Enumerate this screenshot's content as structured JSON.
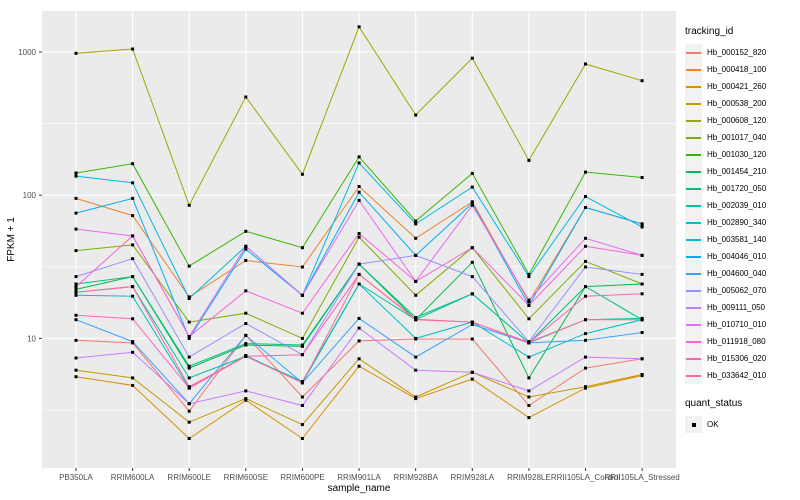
{
  "figure": {
    "background": "#ffffff",
    "panel_background": "#ebebeb",
    "grid_color": "#ffffff",
    "tick_color": "#333333",
    "tick_label_color": "#4d4d4d",
    "axis_title_color": "#000000",
    "point_color": "#000000",
    "legend_key_background": "#f2f2f2"
  },
  "axes": {
    "x_title": "sample_name",
    "y_title": "FPKM + 1"
  },
  "legend": {
    "title": "tracking_id",
    "quant_status_title": "quant_status",
    "ok_label": "OK"
  },
  "chart_data": {
    "type": "line",
    "xlabel": "sample_name",
    "ylabel": "FPKM + 1",
    "y_scale": "log10",
    "grid": true,
    "legend_position": "right",
    "legend_title": "tracking_id",
    "point_shape": "black-square",
    "y_ticks": [
      10,
      100,
      1000
    ],
    "y_tick_labels": [
      "10",
      "100",
      "1000"
    ],
    "y_minor_gridlines": [
      3.162,
      31.62,
      316.2
    ],
    "ylim": [
      1.23,
      1940
    ],
    "categories": [
      "PB350LA",
      "RRIM600LA",
      "RRIM600LE",
      "RRIM600SE",
      "RRIM600PE",
      "RRIM901LA",
      "RRIM928BA",
      "RRIM928LA",
      "RRIM928LE",
      "RRII105LA_Control",
      "RRII105LA_Stressed"
    ],
    "quant_status": {
      "title": "quant_status",
      "items": [
        "OK"
      ]
    },
    "series": [
      {
        "name": "Hb_000152_820",
        "color": "#F8766D",
        "values": [
          9.7,
          9.3,
          3.1,
          10.5,
          3.9,
          9.6,
          9.9,
          9.9,
          3.4,
          6.2,
          7.2
        ]
      },
      {
        "name": "Hb_000418_100",
        "color": "#EA8331",
        "values": [
          95,
          72,
          19.5,
          35,
          31.5,
          115,
          50,
          90,
          18,
          82,
          63
        ]
      },
      {
        "name": "Hb_000421_260",
        "color": "#D89000",
        "values": [
          5.4,
          4.7,
          2.0,
          3.7,
          2.0,
          6.4,
          3.8,
          5.2,
          2.8,
          4.5,
          5.5
        ]
      },
      {
        "name": "Hb_000538_200",
        "color": "#C09B00",
        "values": [
          6.0,
          5.3,
          2.6,
          3.8,
          2.5,
          7.2,
          3.9,
          5.8,
          3.9,
          4.6,
          5.6
        ]
      },
      {
        "name": "Hb_000608_120",
        "color": "#A3A500",
        "values": [
          980,
          1050,
          85,
          485,
          140,
          1500,
          363,
          905,
          175,
          825,
          630
        ]
      },
      {
        "name": "Hb_001017_040",
        "color": "#7CAE00",
        "values": [
          41,
          45,
          13,
          15,
          10,
          51,
          20,
          43,
          13.7,
          34.5,
          24
        ]
      },
      {
        "name": "Hb_001030_120",
        "color": "#39B600",
        "values": [
          143,
          166,
          32,
          56,
          43,
          185,
          66,
          142,
          28,
          145,
          133
        ]
      },
      {
        "name": "Hb_001454_210",
        "color": "#00BB4E",
        "values": [
          22,
          27,
          6.2,
          9,
          8.8,
          33,
          13.5,
          34,
          5.3,
          23,
          24
        ]
      },
      {
        "name": "Hb_001720_050",
        "color": "#00BF7D",
        "values": [
          24,
          27,
          6.4,
          9.2,
          9,
          33,
          14,
          20.5,
          9.3,
          23,
          13.5
        ]
      },
      {
        "name": "Hb_002039_010",
        "color": "#00C1A3",
        "values": [
          21,
          23,
          5.3,
          7.5,
          5,
          24,
          13.5,
          20.5,
          9.3,
          13.5,
          13.8
        ]
      },
      {
        "name": "Hb_002890_340",
        "color": "#00BFC4",
        "values": [
          20,
          19.7,
          4.5,
          7.6,
          4.9,
          24,
          10,
          13,
          7.4,
          10.8,
          13.5
        ]
      },
      {
        "name": "Hb_003581_140",
        "color": "#00BAE0",
        "values": [
          136,
          122,
          19,
          44,
          20,
          168,
          63,
          114,
          27,
          98,
          60
        ]
      },
      {
        "name": "Hb_004046_010",
        "color": "#00B0F6",
        "values": [
          75,
          95,
          10,
          42,
          20,
          105,
          38,
          88,
          17,
          82,
          63
        ]
      },
      {
        "name": "Hb_004600_040",
        "color": "#35A2FF",
        "values": [
          13.5,
          9.5,
          3.5,
          10.5,
          4.9,
          13.8,
          7.4,
          12.5,
          9.3,
          9.7,
          11
        ]
      },
      {
        "name": "Hb_005062_070",
        "color": "#9590FF",
        "values": [
          27,
          36,
          7.4,
          12.7,
          7.7,
          33,
          38,
          27,
          9.5,
          31.5,
          28
        ]
      },
      {
        "name": "Hb_009111_050",
        "color": "#C77CFF",
        "values": [
          7.3,
          8,
          3.5,
          4.3,
          3.4,
          11.8,
          6,
          5.8,
          4.3,
          7.4,
          7.2
        ]
      },
      {
        "name": "Hb_010710_010",
        "color": "#E76BF3",
        "values": [
          58,
          52,
          10.3,
          44,
          20,
          92,
          25,
          85,
          18.5,
          50,
          38
        ]
      },
      {
        "name": "Hb_011918_080",
        "color": "#FA62DB",
        "values": [
          23,
          52,
          10.3,
          21.5,
          15,
          54,
          25,
          43,
          17,
          44,
          38
        ]
      },
      {
        "name": "Hb_015306_020",
        "color": "#FF62BC",
        "values": [
          14.5,
          13.7,
          4.5,
          7.5,
          7.7,
          28,
          13.5,
          13,
          9.3,
          19.7,
          20.5
        ]
      },
      {
        "name": "Hb_033642_010",
        "color": "#FF6A98",
        "values": [
          21,
          23,
          4.6,
          7.5,
          4.9,
          28,
          13.6,
          13,
          9.4,
          13.5,
          13.5
        ]
      }
    ]
  }
}
